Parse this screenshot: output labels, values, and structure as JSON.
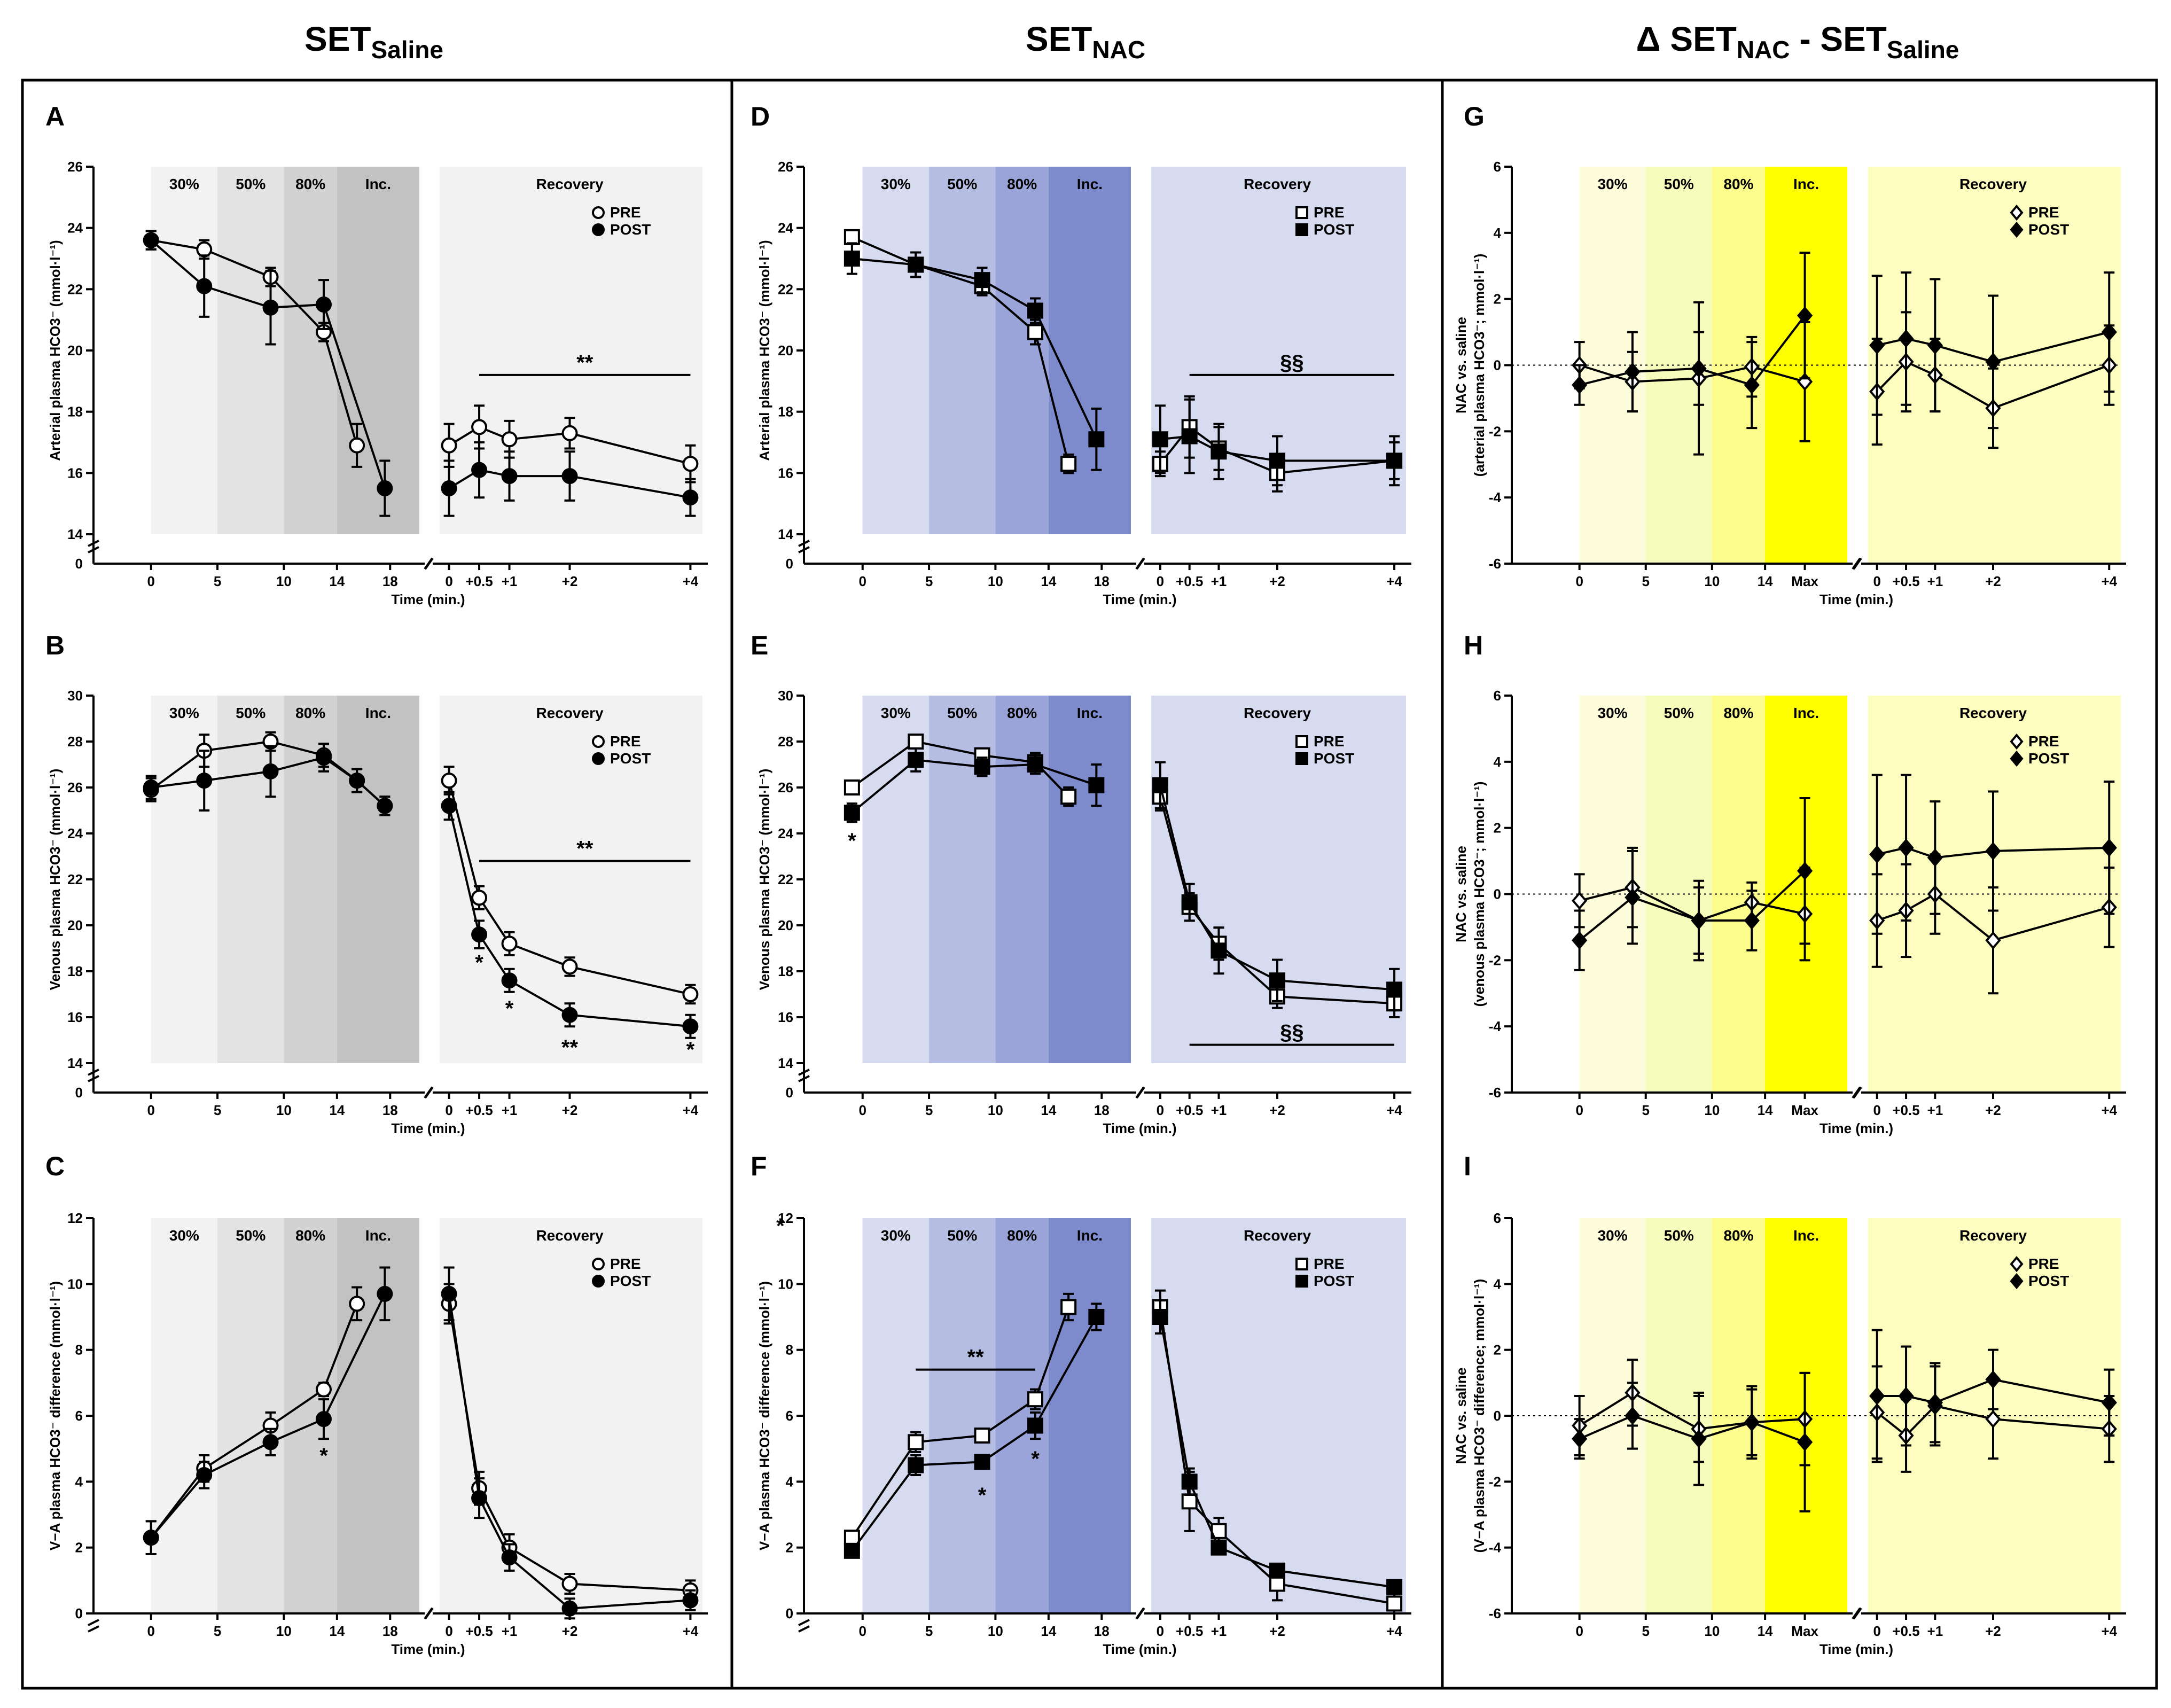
{
  "figure": {
    "columns": [
      {
        "main": "SET",
        "sub": "Saline",
        "prefix": ""
      },
      {
        "main": "SET",
        "sub": "NAC",
        "prefix": ""
      },
      {
        "main": "SET",
        "sub": "NAC",
        "prefix": "Δ ",
        "mid": " - SET",
        "sub2": "Saline"
      }
    ],
    "x_axis_title": "Time (min.)",
    "exercise_ticks": [
      "0",
      "5",
      "10",
      "14",
      "18"
    ],
    "exercise_ticks_delta": [
      "0",
      "5",
      "10",
      "14",
      "Max"
    ],
    "recovery_ticks": [
      "0",
      "+0.5",
      "+1",
      "+2",
      "+4"
    ],
    "phases": [
      "30%",
      "50%",
      "80%",
      "Inc."
    ],
    "recovery_label": "Recovery",
    "legend": {
      "pre": "PRE",
      "post": "POST"
    },
    "colors": {
      "saline_bands": [
        "#f2f2f2",
        "#e3e3e3",
        "#d2d2d2",
        "#c2c2c2"
      ],
      "saline_recovery": "#f2f2f2",
      "nac_bands": [
        "#d7dbef",
        "#b6bde3",
        "#9aa4d8",
        "#7d8bcc"
      ],
      "nac_recovery": "#d7dbef",
      "delta_bands": [
        "#fdfddb",
        "#f6fcbc",
        "#fdfd8e",
        "#ffff00"
      ],
      "delta_recovery": "#fdfdc0"
    }
  },
  "chart_data": [
    {
      "panel": "A",
      "type": "line",
      "column": "Saline",
      "marker": "circle",
      "ylabel": "Arterial plasma HCO3⁻ (mmol·l⁻¹)",
      "ylim": [
        14,
        26
      ],
      "yticks": [
        14,
        16,
        18,
        20,
        22,
        24,
        26
      ],
      "exercise_x": [
        0,
        4,
        9,
        13,
        15.5,
        17.6
      ],
      "recovery_x": [
        0,
        0.5,
        1,
        2,
        4
      ],
      "series": [
        {
          "name": "PRE",
          "exercise_y": [
            23.6,
            23.3,
            22.4,
            20.6,
            16.9,
            null
          ],
          "exercise_err": [
            0.3,
            0.3,
            0.3,
            0.3,
            0.7,
            0
          ],
          "recovery_y": [
            16.9,
            17.5,
            17.1,
            17.3,
            16.3
          ],
          "recovery_err": [
            0.7,
            0.7,
            0.6,
            0.5,
            0.6
          ]
        },
        {
          "name": "POST",
          "exercise_y": [
            23.6,
            22.1,
            21.4,
            21.5,
            null,
            15.5
          ],
          "exercise_err": [
            0.3,
            1.0,
            1.2,
            0.8,
            0,
            0.9
          ],
          "recovery_y": [
            15.5,
            16.1,
            15.9,
            15.9,
            15.2
          ],
          "recovery_err": [
            0.9,
            0.9,
            0.8,
            0.8,
            0.6
          ]
        }
      ],
      "annotations": [
        {
          "text": "**",
          "kind": "bar",
          "x1": 0.5,
          "x2": 4,
          "y": 19.2
        }
      ]
    },
    {
      "panel": "B",
      "type": "line",
      "column": "Saline",
      "marker": "circle",
      "ylabel": "Venous plasma HCO3⁻ (mmol·l⁻¹)",
      "ylim": [
        14,
        30
      ],
      "yticks": [
        14,
        16,
        18,
        20,
        22,
        24,
        26,
        28,
        30
      ],
      "exercise_x": [
        0,
        4,
        9,
        13,
        15.5,
        17.6
      ],
      "recovery_x": [
        0,
        0.5,
        1,
        2,
        4
      ],
      "series": [
        {
          "name": "PRE",
          "exercise_y": [
            25.9,
            27.6,
            28.0,
            27.4,
            26.3,
            25.2
          ],
          "exercise_err": [
            0.5,
            0.7,
            0.4,
            0.5,
            0.5,
            0.4
          ],
          "recovery_y": [
            26.3,
            21.2,
            19.2,
            18.2,
            17.0
          ],
          "recovery_err": [
            0.6,
            0.5,
            0.5,
            0.4,
            0.4
          ]
        },
        {
          "name": "POST",
          "exercise_y": [
            26.0,
            26.3,
            26.7,
            27.3,
            26.3,
            25.2
          ],
          "exercise_err": [
            0.5,
            1.3,
            1.1,
            0.6,
            0.5,
            0.4
          ],
          "recovery_y": [
            25.2,
            19.6,
            17.6,
            16.1,
            15.6
          ],
          "recovery_err": [
            0.6,
            0.6,
            0.5,
            0.5,
            0.5
          ]
        }
      ],
      "annotations": [
        {
          "text": "**",
          "kind": "bar",
          "x1": 0.5,
          "x2": 4,
          "y": 22.8
        },
        {
          "text": "*",
          "kind": "mark",
          "x": 0.5,
          "y": 18.4
        },
        {
          "text": "*",
          "kind": "mark",
          "x": 1,
          "y": 16.4
        },
        {
          "text": "**",
          "kind": "mark",
          "x": 2,
          "y": 14.7
        },
        {
          "text": "*",
          "kind": "mark",
          "x": 4,
          "y": 14.6
        }
      ]
    },
    {
      "panel": "C",
      "type": "line",
      "column": "Saline",
      "marker": "circle",
      "ylabel": "V−A plasma HCO3⁻ difference (mmol·l⁻¹)",
      "ylim": [
        0,
        12
      ],
      "yticks": [
        0,
        2,
        4,
        6,
        8,
        10,
        12
      ],
      "exercise_x": [
        0,
        4,
        9,
        13,
        15.5,
        17.6
      ],
      "recovery_x": [
        0,
        0.5,
        1,
        2,
        4
      ],
      "series": [
        {
          "name": "PRE",
          "exercise_y": [
            2.3,
            4.4,
            5.7,
            6.8,
            9.4,
            null
          ],
          "exercise_err": [
            0.5,
            0.4,
            0.4,
            0.2,
            0.5,
            0
          ],
          "recovery_y": [
            9.4,
            3.8,
            2.0,
            0.9,
            0.7
          ],
          "recovery_err": [
            0.6,
            0.5,
            0.4,
            0.3,
            0.3
          ]
        },
        {
          "name": "POST",
          "exercise_y": [
            2.3,
            4.2,
            5.2,
            5.9,
            null,
            9.7
          ],
          "exercise_err": [
            0.5,
            0.4,
            0.4,
            0.6,
            0,
            0.8
          ],
          "recovery_y": [
            9.7,
            3.5,
            1.7,
            0.15,
            0.4
          ],
          "recovery_err": [
            0.8,
            0.6,
            0.4,
            0.3,
            0.3
          ]
        }
      ],
      "annotations": [
        {
          "text": "*",
          "kind": "mark",
          "x": 13,
          "y": 4.8
        }
      ]
    },
    {
      "panel": "D",
      "type": "line",
      "column": "NAC",
      "marker": "square",
      "ylabel": "Arterial plasma HCO3⁻ (mmol·l⁻¹)",
      "ylim": [
        14,
        26
      ],
      "yticks": [
        14,
        16,
        18,
        20,
        22,
        24,
        26
      ],
      "exercise_x": [
        -0.8,
        4,
        9,
        13,
        15.5,
        17.6
      ],
      "recovery_x": [
        0,
        0.5,
        1,
        2,
        4
      ],
      "series": [
        {
          "name": "PRE",
          "exercise_y": [
            23.7,
            22.8,
            22.1,
            20.6,
            16.3,
            null
          ],
          "exercise_err": [
            0.2,
            0.4,
            0.3,
            0.4,
            0.3,
            0
          ],
          "recovery_y": [
            16.3,
            17.5,
            16.8,
            16.0,
            16.4
          ],
          "recovery_err": [
            0.4,
            1.0,
            0.7,
            0.6,
            0.6
          ]
        },
        {
          "name": "POST",
          "exercise_y": [
            23.0,
            22.8,
            22.3,
            21.3,
            null,
            17.1
          ],
          "exercise_err": [
            0.5,
            0.4,
            0.4,
            0.4,
            0,
            1.0
          ],
          "recovery_y": [
            17.1,
            17.2,
            16.7,
            16.4,
            16.4
          ],
          "recovery_err": [
            1.1,
            1.2,
            0.9,
            0.8,
            0.8
          ]
        }
      ],
      "annotations": [
        {
          "text": "§§",
          "kind": "bar",
          "x1": 0.5,
          "x2": 4,
          "y": 19.2
        }
      ]
    },
    {
      "panel": "E",
      "type": "line",
      "column": "NAC",
      "marker": "square",
      "ylabel": "Venous plasma HCO3⁻ (mmol·l⁻¹)",
      "ylim": [
        14,
        30
      ],
      "yticks": [
        14,
        16,
        18,
        20,
        22,
        24,
        26,
        28,
        30
      ],
      "exercise_x": [
        -0.8,
        4,
        9,
        13,
        15.5,
        17.6
      ],
      "recovery_x": [
        0,
        0.5,
        1,
        2,
        4
      ],
      "series": [
        {
          "name": "PRE",
          "exercise_y": [
            26.0,
            28.0,
            27.4,
            27.1,
            25.6,
            null
          ],
          "exercise_err": [
            0.2,
            0.3,
            0.3,
            0.4,
            0.4,
            0
          ],
          "recovery_y": [
            25.6,
            20.8,
            19.2,
            16.9,
            16.6
          ],
          "recovery_err": [
            0.6,
            0.6,
            0.7,
            0.5,
            0.6
          ]
        },
        {
          "name": "POST",
          "exercise_y": [
            24.9,
            27.2,
            26.9,
            27.0,
            null,
            26.1
          ],
          "exercise_err": [
            0.4,
            0.5,
            0.4,
            0.4,
            0,
            0.9
          ],
          "recovery_y": [
            26.1,
            21.0,
            18.9,
            17.6,
            17.2
          ],
          "recovery_err": [
            1.0,
            0.8,
            1.0,
            0.9,
            0.9
          ]
        }
      ],
      "annotations": [
        {
          "text": "*",
          "kind": "mark",
          "x": -0.8,
          "y": 23.7
        },
        {
          "text": "§§",
          "kind": "bar",
          "x1": 0.5,
          "x2": 4,
          "y": 14.8
        }
      ]
    },
    {
      "panel": "F",
      "type": "line",
      "column": "NAC",
      "marker": "square",
      "ylabel": "V−A plasma HCO3⁻ difference (mmol·l⁻¹)",
      "ylim": [
        0,
        12
      ],
      "yticks": [
        0,
        2,
        4,
        6,
        8,
        10,
        12
      ],
      "exercise_x": [
        -0.8,
        4,
        9,
        13,
        15.5,
        17.6
      ],
      "recovery_x": [
        0,
        0.5,
        1,
        2,
        4
      ],
      "series": [
        {
          "name": "PRE",
          "exercise_y": [
            2.3,
            5.2,
            5.4,
            6.5,
            9.3,
            null
          ],
          "exercise_err": [
            0.2,
            0.3,
            0.2,
            0.3,
            0.4,
            0
          ],
          "recovery_y": [
            9.3,
            3.4,
            2.5,
            0.9,
            0.3
          ],
          "recovery_err": [
            0.5,
            0.9,
            0.4,
            0.5,
            0.3
          ]
        },
        {
          "name": "POST",
          "exercise_y": [
            1.9,
            4.5,
            4.6,
            5.7,
            null,
            9.0
          ],
          "exercise_err": [
            0.2,
            0.3,
            0.2,
            0.4,
            0,
            0.4
          ],
          "recovery_y": [
            9.0,
            4.0,
            2.0,
            1.3,
            0.8
          ],
          "recovery_err": [
            0.5,
            0.4,
            0.2,
            0.2,
            0.2
          ]
        }
      ],
      "annotations": [
        {
          "text": "*",
          "kind": "corner",
          "x": -2.5,
          "y": 11.8
        },
        {
          "text": "**",
          "kind": "bar",
          "x1": 4,
          "x2": 13,
          "y": 7.4
        },
        {
          "text": "*",
          "kind": "mark",
          "x": 9,
          "y": 3.6
        },
        {
          "text": "*",
          "kind": "mark",
          "x": 13,
          "y": 4.7
        }
      ]
    },
    {
      "panel": "G",
      "type": "line",
      "column": "Delta",
      "marker": "diamond",
      "ylabel": "NAC vs. saline\n(arterial plasma HCO3⁻; mmol·l⁻¹)",
      "ylim": [
        -6,
        6
      ],
      "yticks": [
        -6,
        -4,
        -2,
        0,
        2,
        4,
        6
      ],
      "exercise_x": [
        0,
        4,
        9,
        13,
        17
      ],
      "recovery_x": [
        0,
        0.5,
        1,
        2,
        4
      ],
      "series": [
        {
          "name": "PRE",
          "exercise_y": [
            0.0,
            -0.5,
            -0.4,
            -0.05,
            -0.5
          ],
          "exercise_err": [
            0.7,
            0.9,
            2.3,
            0.9,
            1.8
          ],
          "recovery_y": [
            -0.8,
            0.1,
            -0.3,
            -1.3,
            0.0
          ],
          "recovery_err": [
            1.6,
            1.5,
            1.1,
            1.2,
            1.2
          ]
        },
        {
          "name": "POST",
          "exercise_y": [
            -0.6,
            -0.2,
            -0.1,
            -0.6,
            1.5
          ],
          "exercise_err": [
            0.6,
            1.2,
            1.1,
            1.3,
            1.9
          ],
          "recovery_y": [
            0.6,
            0.8,
            0.6,
            0.1,
            1.0
          ],
          "recovery_err": [
            2.1,
            2.0,
            2.0,
            2.0,
            1.8
          ]
        }
      ],
      "annotations": []
    },
    {
      "panel": "H",
      "type": "line",
      "column": "Delta",
      "marker": "diamond",
      "ylabel": "NAC vs. saline\n(venous plasma HCO3⁻; mmol·l⁻¹)",
      "ylim": [
        -6,
        6
      ],
      "yticks": [
        -6,
        -4,
        -2,
        0,
        2,
        4,
        6
      ],
      "exercise_x": [
        0,
        4,
        9,
        13,
        17
      ],
      "recovery_x": [
        0,
        0.5,
        1,
        2,
        4
      ],
      "series": [
        {
          "name": "PRE",
          "exercise_y": [
            -0.2,
            0.2,
            -0.8,
            -0.25,
            -0.6
          ],
          "exercise_err": [
            0.8,
            1.2,
            1.0,
            0.6,
            1.4
          ],
          "recovery_y": [
            -0.8,
            -0.5,
            0.0,
            -1.4,
            -0.4
          ],
          "recovery_err": [
            1.4,
            1.4,
            1.2,
            1.6,
            1.2
          ]
        },
        {
          "name": "POST",
          "exercise_y": [
            -1.4,
            -0.1,
            -0.8,
            -0.8,
            0.7
          ],
          "exercise_err": [
            0.9,
            1.4,
            1.2,
            0.9,
            2.2
          ],
          "recovery_y": [
            1.2,
            1.4,
            1.1,
            1.3,
            1.4
          ],
          "recovery_err": [
            2.4,
            2.2,
            1.7,
            1.8,
            2.0
          ]
        }
      ],
      "annotations": []
    },
    {
      "panel": "I",
      "type": "line",
      "column": "Delta",
      "marker": "diamond",
      "ylabel": "NAC vs. saline\n(V−A plasma HCO3⁻ difference; mmol·l⁻¹)",
      "ylim": [
        -6,
        6
      ],
      "yticks": [
        -6,
        -4,
        -2,
        0,
        2,
        4,
        6
      ],
      "exercise_x": [
        0,
        4,
        9,
        13,
        17
      ],
      "recovery_x": [
        0,
        0.5,
        1,
        2,
        4
      ],
      "series": [
        {
          "name": "PRE",
          "exercise_y": [
            -0.3,
            0.7,
            -0.4,
            -0.2,
            -0.1
          ],
          "exercise_err": [
            0.9,
            1.0,
            1.0,
            1.1,
            1.4
          ],
          "recovery_y": [
            0.1,
            -0.6,
            0.3,
            -0.1,
            -0.4
          ],
          "recovery_err": [
            1.4,
            1.1,
            1.2,
            1.2,
            1.0
          ]
        },
        {
          "name": "POST",
          "exercise_y": [
            -0.7,
            0.0,
            -0.7,
            -0.2,
            -0.8
          ],
          "exercise_err": [
            0.6,
            1.0,
            1.4,
            1.0,
            2.1
          ],
          "recovery_y": [
            0.6,
            0.6,
            0.4,
            1.1,
            0.4
          ],
          "recovery_err": [
            2.0,
            1.5,
            1.2,
            0.9,
            1.0
          ]
        }
      ],
      "annotations": []
    }
  ]
}
